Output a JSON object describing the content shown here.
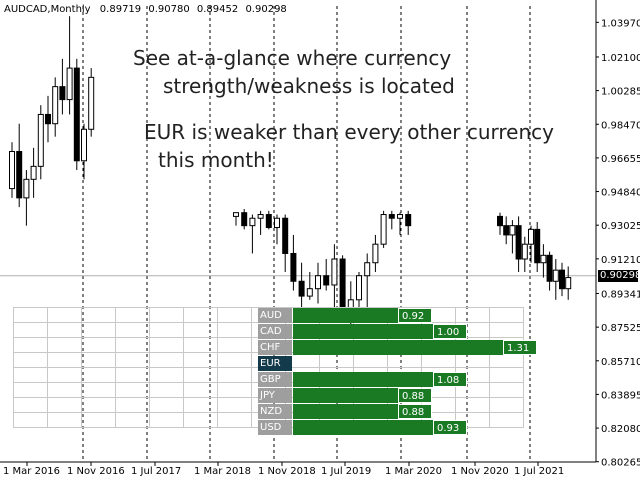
{
  "chart_header": {
    "symbol": "AUDCAD,Monthly",
    "ohlc": [
      "0.89719",
      "0.90780",
      "0.89452",
      "0.90298"
    ]
  },
  "overlay": {
    "headline": [
      "See at-a-glance where currency",
      "strength/weakness is located"
    ],
    "note": [
      "EUR is weaker than every other currency",
      "this month!"
    ]
  },
  "current_price": "0.90298",
  "colors": {
    "bar": "#1a7a24",
    "base_label": "#123a4a",
    "label": "#9e9e9e"
  },
  "chart_data": {
    "type": "candlestick",
    "title": "",
    "ylim": [
      0.8025,
      1.0485
    ],
    "y_ticks": [
      "1.03970",
      "1.02100",
      "1.00285",
      "0.98470",
      "0.96655",
      "0.94840",
      "0.93025",
      "0.91210",
      "0.89341",
      "0.87525",
      "0.85710",
      "0.83895",
      "0.82080",
      "0.80265"
    ],
    "x_ticks": [
      "1 Mar 2016",
      "1 Nov 2016",
      "1 Jul 2017",
      "1 Mar 2018",
      "1 Nov 2018",
      "1 Jul 2019",
      "1 Mar 2020",
      "1 Nov 2020",
      "1 Jul 2021"
    ],
    "current_price_value": 0.90298,
    "candles_left": [
      [
        0.95,
        0.975,
        0.945,
        0.97
      ],
      [
        0.97,
        0.985,
        0.94,
        0.945
      ],
      [
        0.945,
        0.96,
        0.93,
        0.955
      ],
      [
        0.955,
        0.972,
        0.945,
        0.962
      ],
      [
        0.962,
        0.995,
        0.955,
        0.99
      ],
      [
        0.99,
        1.0,
        0.975,
        0.985
      ],
      [
        0.985,
        1.01,
        0.978,
        1.005
      ],
      [
        1.005,
        1.02,
        0.99,
        0.998
      ],
      [
        0.998,
        1.043,
        0.99,
        1.015
      ],
      [
        1.015,
        1.02,
        0.96,
        0.965
      ],
      [
        0.965,
        0.985,
        0.955,
        0.982
      ],
      [
        0.982,
        1.015,
        0.978,
        1.01
      ]
    ],
    "candles_right": [
      [
        0.935,
        0.937,
        0.93,
        0.937
      ],
      [
        0.937,
        0.939,
        0.928,
        0.93
      ],
      [
        0.93,
        0.936,
        0.915,
        0.934
      ],
      [
        0.934,
        0.938,
        0.925,
        0.936
      ],
      [
        0.936,
        0.938,
        0.928,
        0.929
      ],
      [
        0.929,
        0.936,
        0.92,
        0.934
      ],
      [
        0.934,
        0.936,
        0.905,
        0.915
      ],
      [
        0.915,
        0.925,
        0.895,
        0.9
      ],
      [
        0.9,
        0.91,
        0.885,
        0.892
      ],
      [
        0.892,
        0.905,
        0.89,
        0.896
      ],
      [
        0.896,
        0.91,
        0.888,
        0.903
      ],
      [
        0.903,
        0.912,
        0.895,
        0.898
      ],
      [
        0.898,
        0.92,
        0.885,
        0.912
      ],
      [
        0.912,
        0.914,
        0.88,
        0.884
      ],
      [
        0.884,
        0.9,
        0.875,
        0.89
      ],
      [
        0.89,
        0.905,
        0.885,
        0.903
      ],
      [
        0.903,
        0.915,
        0.885,
        0.91
      ],
      [
        0.91,
        0.925,
        0.905,
        0.92
      ],
      [
        0.92,
        0.938,
        0.918,
        0.936
      ],
      [
        0.936,
        0.938,
        0.928,
        0.934
      ],
      [
        0.934,
        0.937,
        0.925,
        0.936
      ],
      [
        0.936,
        0.938,
        0.925,
        0.93
      ]
    ],
    "candles_far": [
      [
        0.935,
        0.937,
        0.925,
        0.93
      ],
      [
        0.93,
        0.935,
        0.92,
        0.925
      ],
      [
        0.925,
        0.933,
        0.915,
        0.93
      ],
      [
        0.93,
        0.935,
        0.905,
        0.912
      ],
      [
        0.912,
        0.924,
        0.905,
        0.92
      ],
      [
        0.92,
        0.93,
        0.91,
        0.928
      ],
      [
        0.928,
        0.932,
        0.905,
        0.91
      ],
      [
        0.91,
        0.92,
        0.902,
        0.914
      ],
      [
        0.914,
        0.916,
        0.895,
        0.9
      ],
      [
        0.9,
        0.912,
        0.89,
        0.906
      ],
      [
        0.906,
        0.91,
        0.892,
        0.896
      ],
      [
        0.896,
        0.908,
        0.89,
        0.902
      ]
    ]
  },
  "strength_table": {
    "rows": [
      {
        "currency": "AUD",
        "value": "0.92",
        "span": 4,
        "base": false
      },
      {
        "currency": "CAD",
        "value": "1.00",
        "span": 5,
        "base": false
      },
      {
        "currency": "CHF",
        "value": "1.31",
        "span": 7,
        "base": false
      },
      {
        "currency": "EUR",
        "value": "",
        "span": 0,
        "base": true
      },
      {
        "currency": "GBP",
        "value": "1.08",
        "span": 5,
        "base": false
      },
      {
        "currency": "JPY",
        "value": "0.88",
        "span": 4,
        "base": false
      },
      {
        "currency": "NZD",
        "value": "0.88",
        "span": 4,
        "base": false
      },
      {
        "currency": "USD",
        "value": "0.93",
        "span": 5,
        "base": false
      }
    ]
  }
}
